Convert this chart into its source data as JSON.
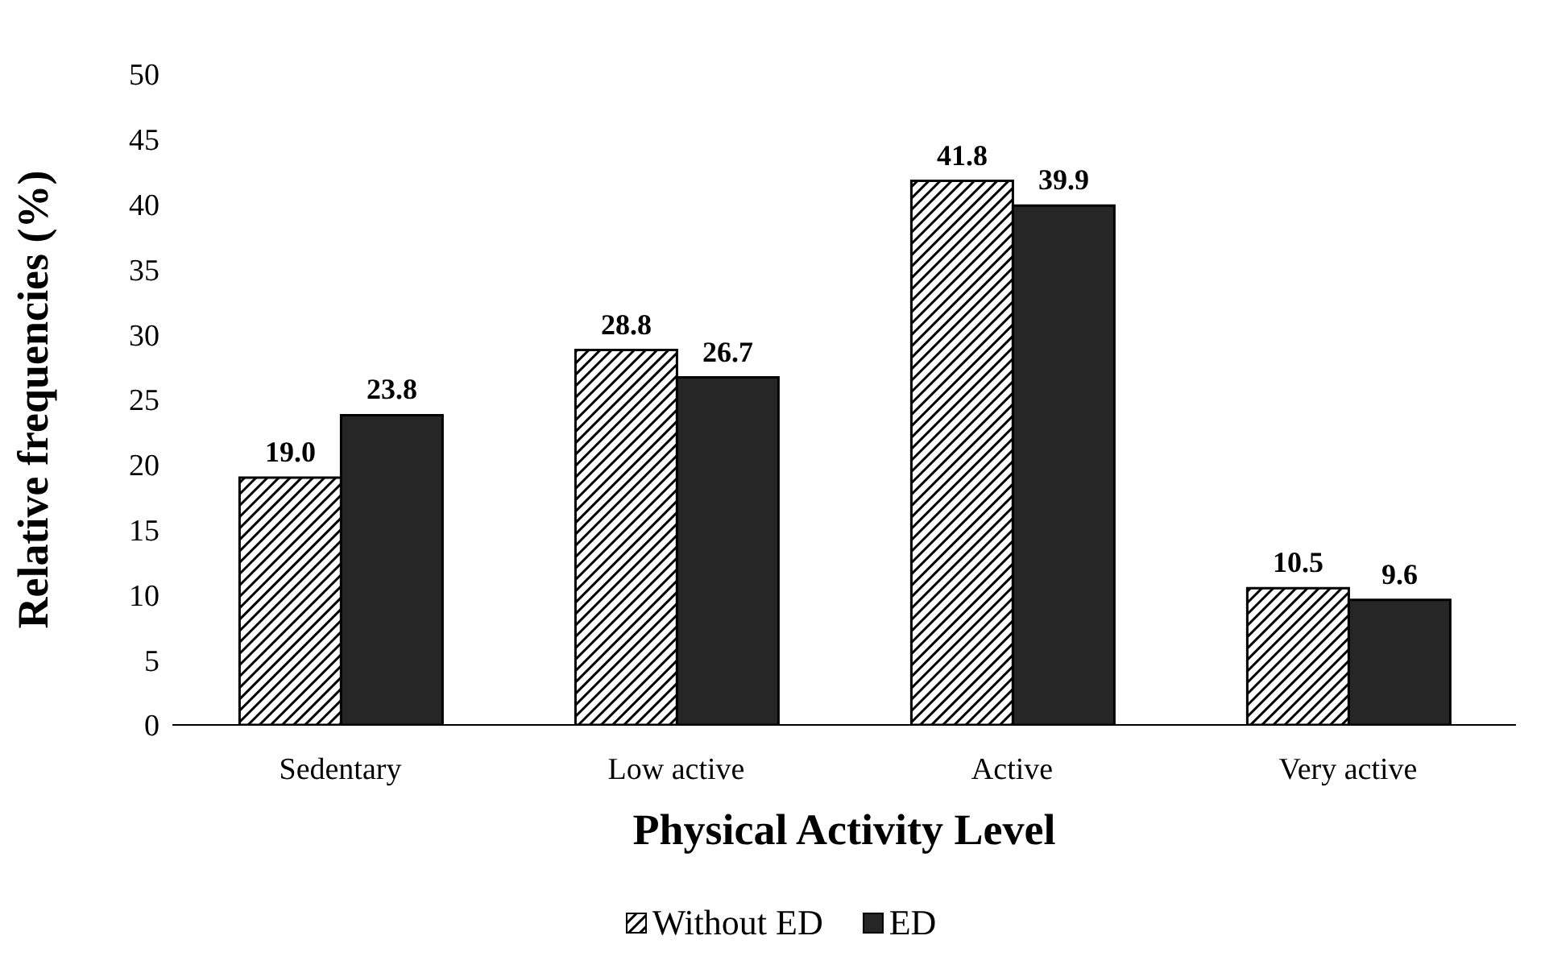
{
  "chart_data": {
    "type": "bar",
    "xlabel": "Physical Activity Level",
    "ylabel": "Relative frequencies (%)",
    "categories": [
      "Sedentary",
      "Low active",
      "Active",
      "Very active"
    ],
    "series": [
      {
        "name": "Without ED",
        "color": "#000000",
        "values": [
          19.0,
          28.8,
          41.8,
          10.5
        ],
        "value_labels": [
          "19.0",
          "28.8",
          "41.8",
          "10.5"
        ]
      },
      {
        "name": "ED",
        "color": "#262626",
        "values": [
          23.8,
          26.7,
          39.9,
          9.6
        ],
        "value_labels": [
          "23.8",
          "26.7",
          "39.9",
          "9.6"
        ]
      }
    ],
    "ylim": [
      0,
      50
    ],
    "yticks": [
      0,
      5,
      10,
      15,
      20,
      25,
      30,
      35,
      40,
      45,
      50
    ],
    "legend": "bottom"
  }
}
